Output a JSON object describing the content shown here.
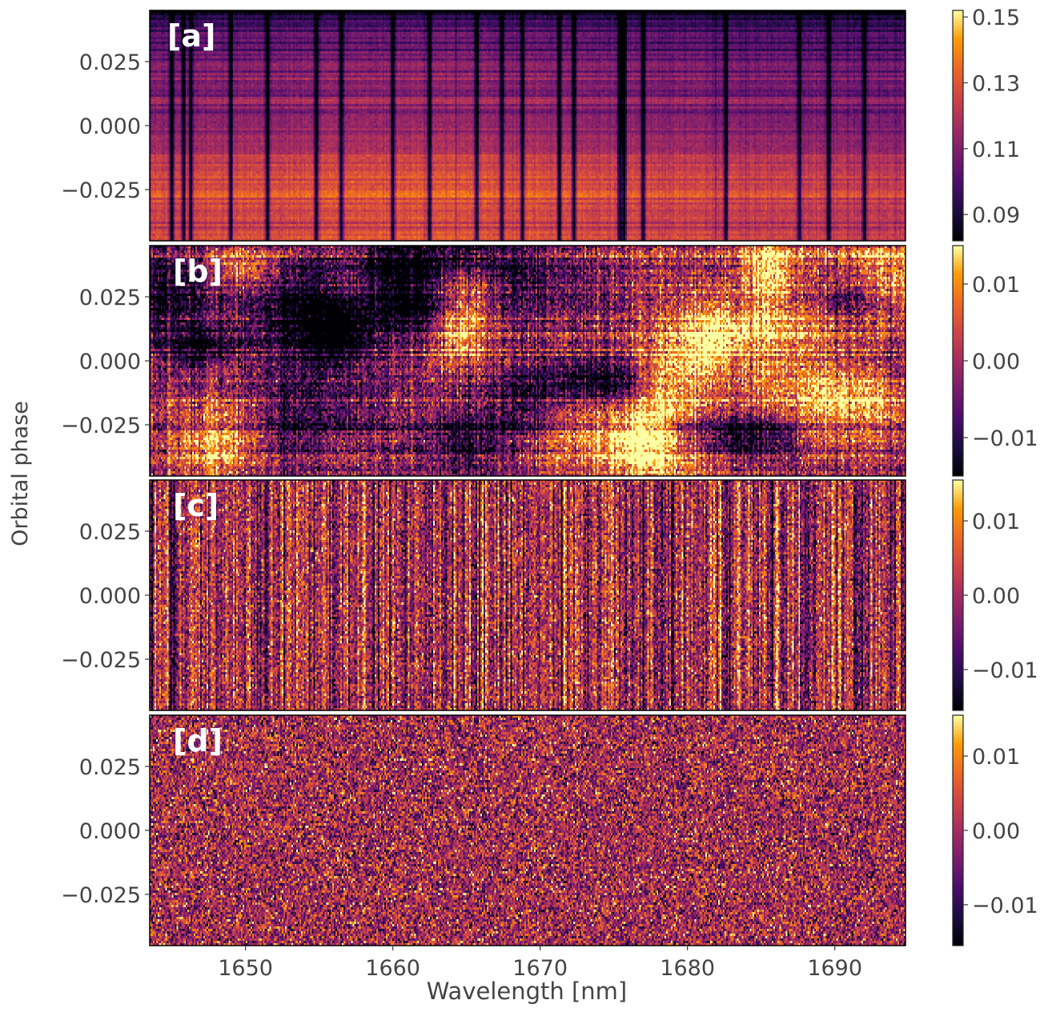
{
  "chart_data": {
    "type": "heatmap",
    "colormap": "inferno",
    "xlabel": "Wavelength [nm]",
    "ylabel": "Orbital phase",
    "xlim": [
      1643.5,
      1694.8
    ],
    "x_ticks": [
      1650,
      1660,
      1670,
      1680,
      1690
    ],
    "x_tick_labels": [
      "1650",
      "1660",
      "1670",
      "1680",
      "1690"
    ],
    "ylim": [
      -0.045,
      0.045
    ],
    "y_ticks": [
      0.025,
      0.0,
      -0.025
    ],
    "y_tick_labels": [
      "0.025",
      "0.000",
      "−0.025"
    ],
    "panels": [
      {
        "label": "[a]",
        "description_type": "raw spectra with strong telluric absorption lines",
        "telluric_lines_nm": [
          1645.0,
          1645.8,
          1646.3,
          1649.0,
          1651.5,
          1654.8,
          1656.5,
          1660.0,
          1662.5,
          1665.7,
          1667.4,
          1668.8,
          1671.3,
          1672.3,
          1675.4,
          1675.7,
          1677.0,
          1682.6,
          1687.6,
          1689.6,
          1692.0
        ],
        "colorbar": {
          "vmin": 0.082,
          "vmax": 0.152,
          "ticks": [
            0.15,
            0.13,
            0.11,
            0.09
          ],
          "tick_labels": [
            "0.15",
            "0.13",
            "0.11",
            "0.09"
          ]
        }
      },
      {
        "label": "[b]",
        "description_type": "residuals with large-scale structures",
        "colorbar": {
          "vmin": -0.015,
          "vmax": 0.015,
          "ticks": [
            0.01,
            0.0,
            -0.01
          ],
          "tick_labels": [
            "0.01",
            "0.00",
            "−0.01"
          ]
        }
      },
      {
        "label": "[c]",
        "description_type": "residuals with column noise",
        "colorbar": {
          "vmin": -0.0155,
          "vmax": 0.0155,
          "ticks": [
            0.01,
            0.0,
            -0.01
          ],
          "tick_labels": [
            "0.01",
            "0.00",
            "−0.01"
          ]
        }
      },
      {
        "label": "[d]",
        "description_type": "white noise residuals",
        "colorbar": {
          "vmin": -0.0155,
          "vmax": 0.0155,
          "ticks": [
            0.01,
            0.0,
            -0.01
          ],
          "tick_labels": [
            "0.01",
            "0.00",
            "−0.01"
          ]
        }
      }
    ]
  }
}
